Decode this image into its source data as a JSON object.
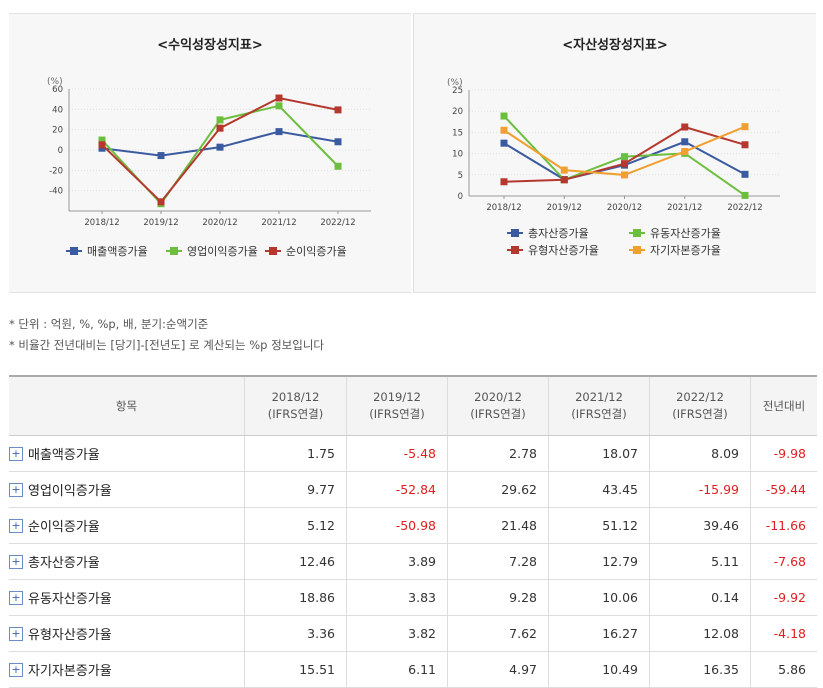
{
  "charts": [
    {
      "title": "<수익성장성지표>",
      "unit": "(%)",
      "categories": [
        "2018/12",
        "2019/12",
        "2020/12",
        "2021/12",
        "2022/12"
      ],
      "y_ticks": [
        "60",
        "40",
        "20",
        "0",
        "-20",
        "-40"
      ],
      "legend": [
        "매출액증가율",
        "영업이익증가율",
        "순이익증가율"
      ]
    },
    {
      "title": "<자산성장성지표>",
      "unit": "(%)",
      "categories": [
        "2018/12",
        "2019/12",
        "2020/12",
        "2021/12",
        "2022/12"
      ],
      "y_ticks": [
        "25",
        "20",
        "15",
        "10",
        "5",
        "0"
      ],
      "legend": [
        "총자산증가율",
        "유동자산증가율",
        "유형자산증가율",
        "자기자본증가율"
      ]
    }
  ],
  "chart_data": [
    {
      "type": "line",
      "title": "<수익성장성지표>",
      "ylabel": "(%)",
      "categories": [
        "2018/12",
        "2019/12",
        "2020/12",
        "2021/12",
        "2022/12"
      ],
      "ylim": [
        -60,
        60
      ],
      "grid": true,
      "legend_position": "bottom",
      "series": [
        {
          "name": "매출액증가율",
          "color": "#3a5ba0",
          "values": [
            1.75,
            -5.48,
            2.78,
            18.07,
            8.09
          ]
        },
        {
          "name": "영업이익증가율",
          "color": "#6cbf3e",
          "values": [
            9.77,
            -52.84,
            29.62,
            43.45,
            -15.99
          ]
        },
        {
          "name": "순이익증가율",
          "color": "#b5382e",
          "values": [
            5.12,
            -50.98,
            21.48,
            51.12,
            39.46
          ]
        }
      ]
    },
    {
      "type": "line",
      "title": "<자산성장성지표>",
      "ylabel": "(%)",
      "categories": [
        "2018/12",
        "2019/12",
        "2020/12",
        "2021/12",
        "2022/12"
      ],
      "ylim": [
        0,
        25
      ],
      "grid": true,
      "legend_position": "bottom",
      "series": [
        {
          "name": "총자산증가율",
          "color": "#3a5ba0",
          "values": [
            12.46,
            3.89,
            7.28,
            12.79,
            5.11
          ]
        },
        {
          "name": "유동자산증가율",
          "color": "#6cbf3e",
          "values": [
            18.86,
            3.83,
            9.28,
            10.06,
            0.14
          ]
        },
        {
          "name": "유형자산증가율",
          "color": "#b5382e",
          "values": [
            3.36,
            3.82,
            7.62,
            16.27,
            12.08
          ]
        },
        {
          "name": "자기자본증가율",
          "color": "#f0a030",
          "values": [
            15.51,
            6.11,
            4.97,
            10.49,
            16.35
          ]
        }
      ]
    }
  ],
  "notes": [
    "* 단위 : 억원, %, %p, 배, 분기:순액기준",
    "* 비율간 전년대비는 [당기]-[전년도] 로 계산되는 %p 정보입니다"
  ],
  "table": {
    "headers": [
      "항목",
      "2018/12\n(IFRS연결)",
      "2019/12\n(IFRS연결)",
      "2020/12\n(IFRS연결)",
      "2021/12\n(IFRS연결)",
      "2022/12\n(IFRS연결)",
      "전년대비"
    ],
    "expand_symbol": "+",
    "rows": [
      {
        "label": "매출액증가율",
        "values": [
          "1.75",
          "-5.48",
          "2.78",
          "18.07",
          "8.09",
          "-9.98"
        ]
      },
      {
        "label": "영업이익증가율",
        "values": [
          "9.77",
          "-52.84",
          "29.62",
          "43.45",
          "-15.99",
          "-59.44"
        ]
      },
      {
        "label": "순이익증가율",
        "values": [
          "5.12",
          "-50.98",
          "21.48",
          "51.12",
          "39.46",
          "-11.66"
        ]
      },
      {
        "label": "총자산증가율",
        "values": [
          "12.46",
          "3.89",
          "7.28",
          "12.79",
          "5.11",
          "-7.68"
        ]
      },
      {
        "label": "유동자산증가율",
        "values": [
          "18.86",
          "3.83",
          "9.28",
          "10.06",
          "0.14",
          "-9.92"
        ]
      },
      {
        "label": "유형자산증가율",
        "values": [
          "3.36",
          "3.82",
          "7.62",
          "16.27",
          "12.08",
          "-4.18"
        ]
      },
      {
        "label": "자기자본증가율",
        "values": [
          "15.51",
          "6.11",
          "4.97",
          "10.49",
          "16.35",
          "5.86"
        ]
      }
    ],
    "negative_color": "#e02020"
  }
}
